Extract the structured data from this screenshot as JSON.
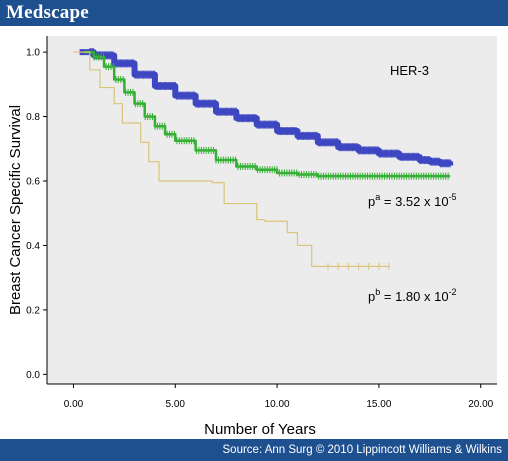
{
  "header": {
    "brand": "Medscape"
  },
  "footer": {
    "source": "Source: Ann Surg © 2010 Lippincott Williams & Wilkins"
  },
  "chart_data": {
    "type": "line",
    "title": "",
    "xlabel": "Number of Years",
    "ylabel": "Breast Cancer Specific Survival",
    "xlim": [
      -1.3,
      20.8
    ],
    "ylim": [
      -0.03,
      1.05
    ],
    "xticks": [
      0,
      5,
      10,
      15,
      20
    ],
    "xtick_labels": [
      "0.00",
      "5.00",
      "10.00",
      "15.00",
      "20.00"
    ],
    "yticks": [
      0,
      0.2,
      0.4,
      0.6,
      0.8,
      1.0
    ],
    "ytick_labels": [
      "0.0",
      "0.2",
      "0.4",
      "0.6",
      "0.8",
      "1.0"
    ],
    "grid": false,
    "annotations": {
      "group_label": "HER-3",
      "pa_base": "p",
      "pa_sup": "a",
      "pa_value": " = 3.52 x 10",
      "pa_exp": "-5",
      "pb_base": "p",
      "pb_sup": "b",
      "pb_value": " = 1.80 x 10",
      "pb_exp": "-2"
    },
    "series": [
      {
        "color": "#3e47c2",
        "style": "step",
        "x": [
          0.3,
          1,
          2,
          3,
          4,
          5,
          6,
          7,
          8,
          9,
          10,
          11,
          12,
          13,
          14,
          15,
          16,
          17,
          17.5,
          18,
          18.5
        ],
        "y": [
          1.0,
          0.99,
          0.965,
          0.93,
          0.895,
          0.865,
          0.84,
          0.815,
          0.795,
          0.775,
          0.755,
          0.74,
          0.72,
          0.705,
          0.695,
          0.685,
          0.675,
          0.665,
          0.66,
          0.655,
          0.648
        ]
      },
      {
        "color": "#35b034",
        "style": "step",
        "x": [
          0.5,
          1,
          1.5,
          2,
          2.5,
          3,
          3.5,
          4,
          4.5,
          5,
          6,
          7,
          8,
          9,
          10,
          11,
          12,
          14,
          16,
          18.5
        ],
        "y": [
          1.0,
          0.985,
          0.955,
          0.915,
          0.875,
          0.84,
          0.8,
          0.77,
          0.745,
          0.725,
          0.695,
          0.665,
          0.645,
          0.635,
          0.625,
          0.62,
          0.615,
          0.615,
          0.615,
          0.615
        ]
      },
      {
        "color": "#d9c47a",
        "style": "step",
        "x": [
          0,
          0.8,
          1.3,
          2.0,
          2.4,
          3.3,
          3.7,
          4.2,
          6.8,
          7.4,
          9.0,
          9.4,
          10.5,
          11.0,
          11.7,
          15.5
        ],
        "y": [
          1.0,
          0.945,
          0.89,
          0.84,
          0.78,
          0.72,
          0.66,
          0.6,
          0.595,
          0.53,
          0.48,
          0.475,
          0.44,
          0.4,
          0.335,
          0.335
        ]
      }
    ]
  }
}
